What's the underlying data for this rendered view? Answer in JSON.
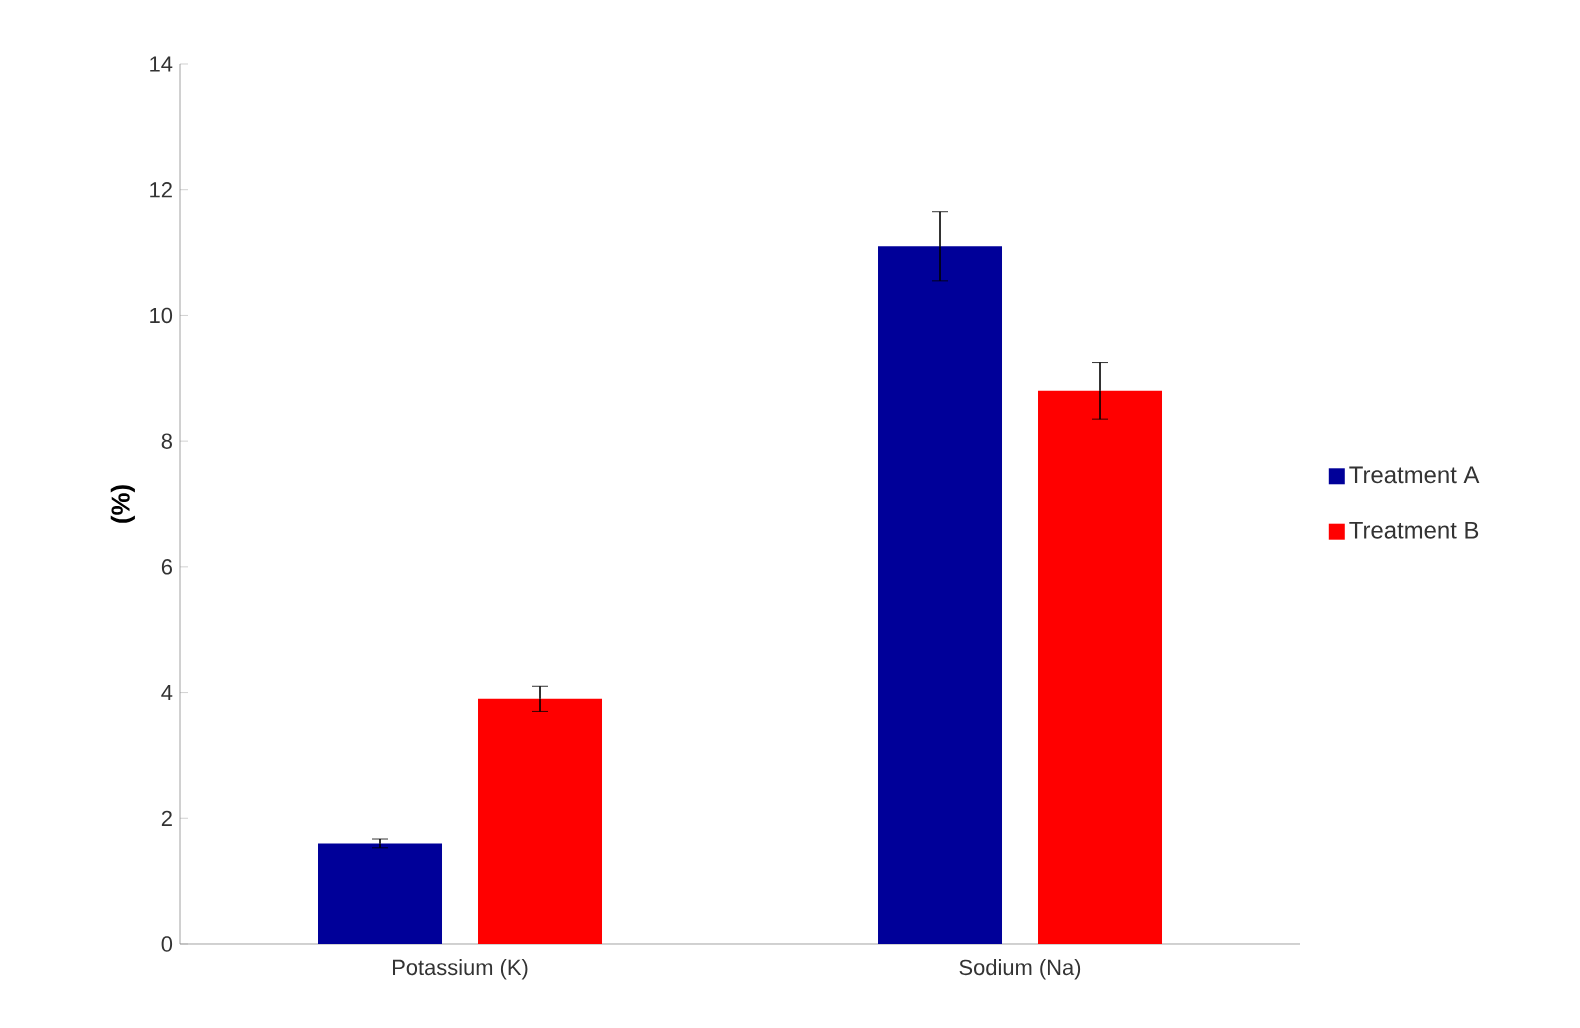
{
  "chart_data": {
    "type": "bar",
    "ylabel": "(%)",
    "categories": [
      "Potassium (K)",
      "Sodium (Na)"
    ],
    "series": [
      {
        "name": "Treatment A",
        "color": "#000099",
        "values": [
          1.6,
          11.1
        ],
        "errors": [
          0.07,
          0.55
        ]
      },
      {
        "name": "Treatment B",
        "color": "#ff0000",
        "values": [
          3.9,
          8.8
        ],
        "errors": [
          0.2,
          0.45
        ]
      }
    ],
    "ylim": [
      0,
      14
    ],
    "yticks": [
      0,
      2,
      4,
      6,
      8,
      10,
      12,
      14
    ],
    "grid": false,
    "legend": "right"
  }
}
